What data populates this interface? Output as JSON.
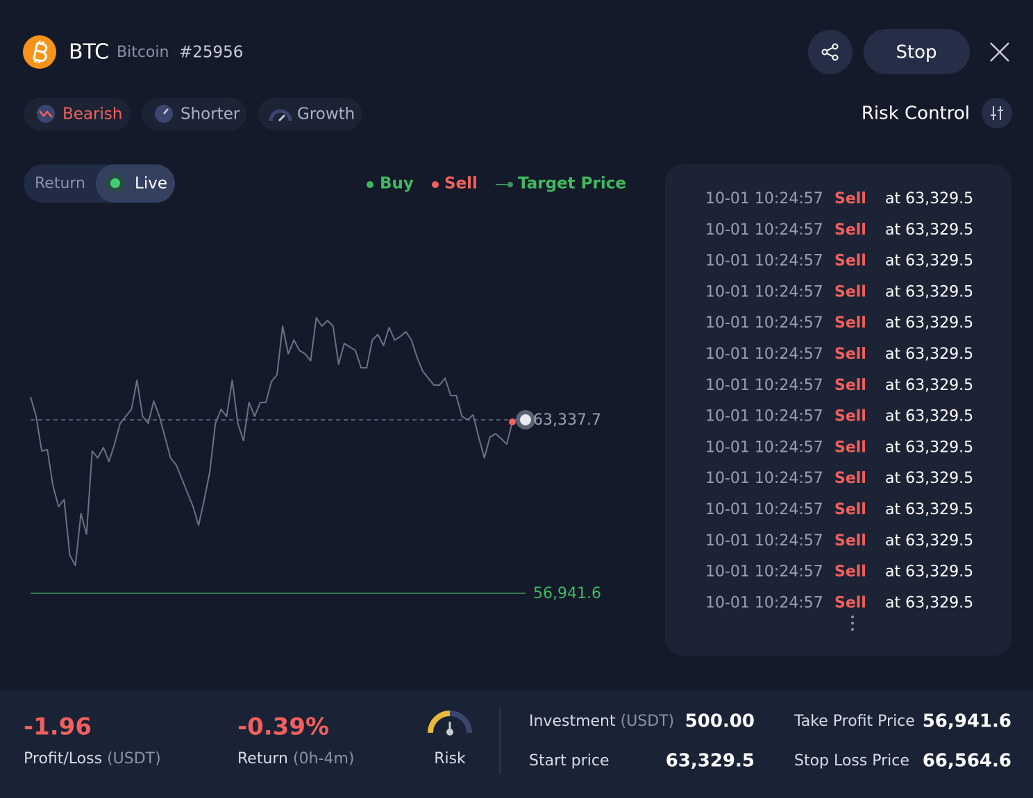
{
  "header": {
    "symbol": "BTC",
    "name": "Bitcoin",
    "id": "#25956",
    "stop_button": "Stop"
  },
  "tags": [
    "Bearish",
    "Shorter",
    "Growth"
  ],
  "risk_control": "Risk Control",
  "chart": {
    "toggle": [
      "Return",
      "Live"
    ],
    "legend": [
      "Buy",
      "Sell",
      "Target Price"
    ],
    "current_price": {
      "value": 63337.7,
      "label": "63,337.7"
    },
    "target_price": {
      "value": 56941.6,
      "label": "56,941.6"
    },
    "prices": [
      64182,
      63466,
      62186,
      62238,
      60907,
      60140,
      60396,
      58349,
      57965,
      59884,
      59116,
      62186,
      61931,
      62314,
      61803,
      62442,
      63210,
      63466,
      63721,
      64796,
      63466,
      63210,
      64028,
      63466,
      62698,
      61931,
      61675,
      61163,
      60651,
      60140,
      59449,
      60396,
      61419,
      63210,
      63721,
      63466,
      64796,
      63210,
      62570,
      63977,
      63466,
      63977,
      63977,
      64745,
      65001,
      66792,
      65768,
      66280,
      65896,
      65768,
      65512,
      67099,
      66792,
      66996,
      66792,
      65384,
      66152,
      66024,
      65896,
      65256,
      65256,
      66280,
      66485,
      66075,
      66740,
      66280,
      66408,
      66587,
      66280,
      65640,
      65128,
      64873,
      64617,
      64617,
      64873,
      64233,
      64233,
      63466,
      63338,
      63517,
      62698,
      61931,
      62698,
      62826,
      62647,
      62442,
      63261
    ]
  },
  "trades": [
    {
      "time": "10-01 10:24:57",
      "side": "Sell",
      "price": "at 63,329.5"
    },
    {
      "time": "10-01 10:24:57",
      "side": "Sell",
      "price": "at 63,329.5"
    },
    {
      "time": "10-01 10:24:57",
      "side": "Sell",
      "price": "at 63,329.5"
    },
    {
      "time": "10-01 10:24:57",
      "side": "Sell",
      "price": "at 63,329.5"
    },
    {
      "time": "10-01 10:24:57",
      "side": "Sell",
      "price": "at 63,329.5"
    },
    {
      "time": "10-01 10:24:57",
      "side": "Sell",
      "price": "at 63,329.5"
    },
    {
      "time": "10-01 10:24:57",
      "side": "Sell",
      "price": "at 63,329.5"
    },
    {
      "time": "10-01 10:24:57",
      "side": "Sell",
      "price": "at 63,329.5"
    },
    {
      "time": "10-01 10:24:57",
      "side": "Sell",
      "price": "at 63,329.5"
    },
    {
      "time": "10-01 10:24:57",
      "side": "Sell",
      "price": "at 63,329.5"
    },
    {
      "time": "10-01 10:24:57",
      "side": "Sell",
      "price": "at 63,329.5"
    },
    {
      "time": "10-01 10:24:57",
      "side": "Sell",
      "price": "at 63,329.5"
    },
    {
      "time": "10-01 10:24:57",
      "side": "Sell",
      "price": "at 63,329.5"
    },
    {
      "time": "10-01 10:24:57",
      "side": "Sell",
      "price": "at 63,329.5"
    }
  ],
  "summary": {
    "profit_loss": {
      "value": "-1.96",
      "label": "Profit/Loss",
      "unit": "(USDT)"
    },
    "return": {
      "value": "-0.39%",
      "label": "Return",
      "unit": "(0h-4m)"
    },
    "risk": "Risk",
    "investment": {
      "label": "Investment",
      "unit": "(USDT)",
      "value": "500.00"
    },
    "start_price": {
      "label": "Start price",
      "value": "63,329.5"
    },
    "take_profit": {
      "label": "Take Profit Price",
      "value": "56,941.6"
    },
    "stop_loss": {
      "label": "Stop Loss Price",
      "value": "66,564.6"
    }
  }
}
